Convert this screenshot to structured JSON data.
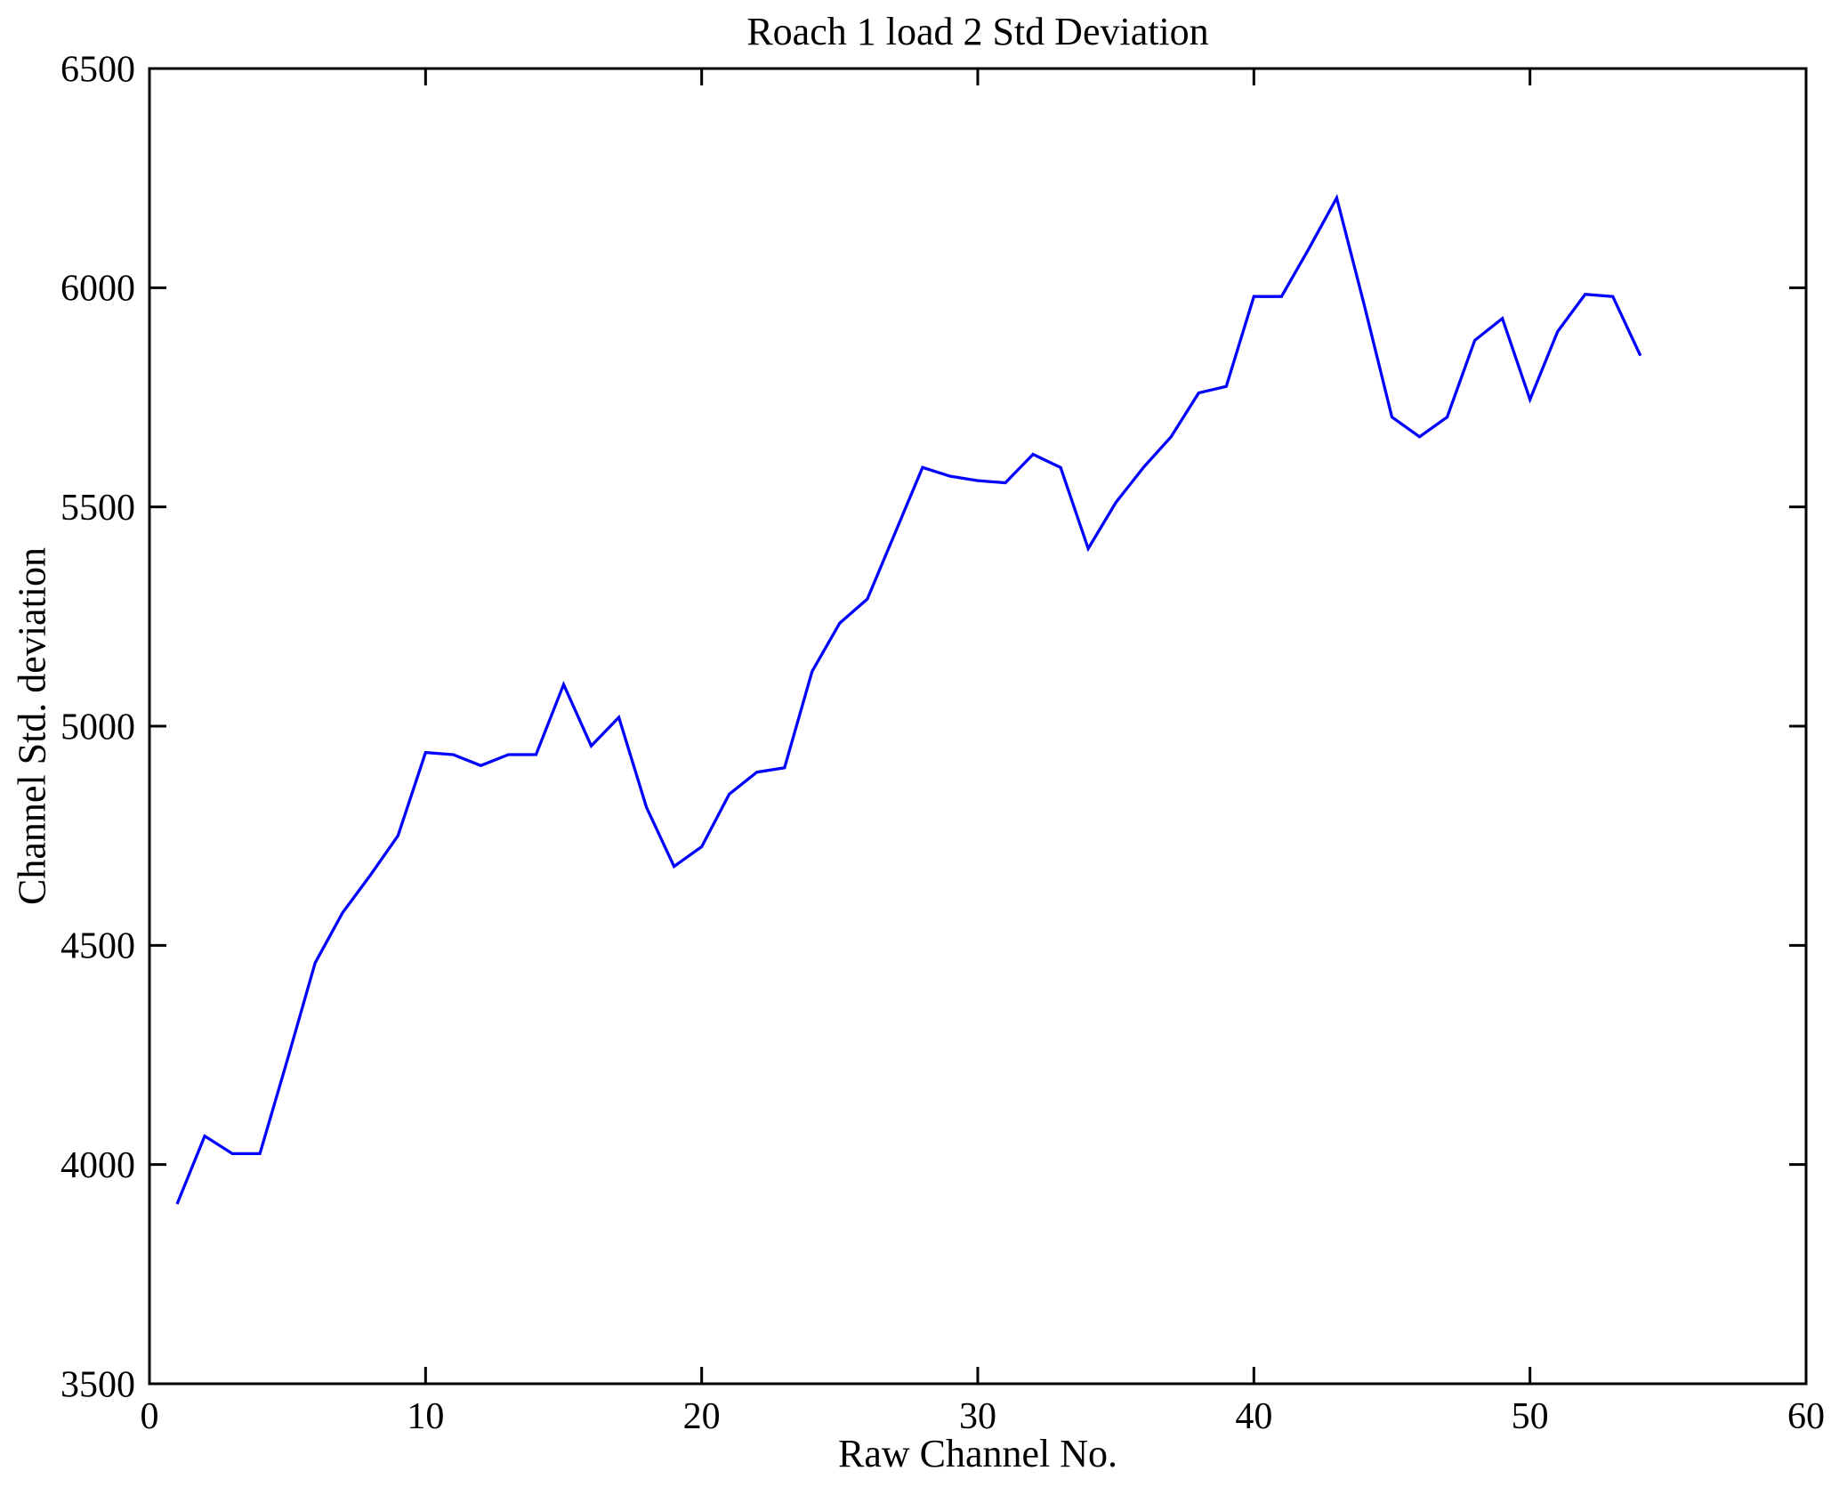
{
  "figure": {
    "background": "#ffffff",
    "axes_color": "#000000"
  },
  "chart_data": {
    "type": "line",
    "title": "Roach 1 load 2 Std Deviation",
    "xlabel": "Raw Channel No.",
    "ylabel": "Channel Std. deviation",
    "xlim": [
      0,
      60
    ],
    "ylim": [
      3500,
      6500
    ],
    "xticks": [
      0,
      10,
      20,
      30,
      40,
      50,
      60
    ],
    "yticks": [
      3500,
      4000,
      4500,
      5000,
      5500,
      6000,
      6500
    ],
    "grid": false,
    "legend": "none",
    "box": true,
    "line_color": "#0000FF",
    "series": [
      {
        "name": "Channel Std. deviation",
        "x": [
          1,
          2,
          3,
          4,
          5,
          6,
          7,
          8,
          9,
          10,
          11,
          12,
          13,
          14,
          15,
          16,
          17,
          18,
          19,
          20,
          21,
          22,
          23,
          24,
          25,
          26,
          27,
          28,
          29,
          30,
          31,
          32,
          33,
          34,
          35,
          36,
          37,
          38,
          39,
          40,
          41,
          42,
          43,
          44,
          45,
          46,
          47,
          48,
          49,
          50,
          51,
          52,
          53,
          54
        ],
        "values": [
          3910,
          4065,
          4025,
          4025,
          4240,
          4460,
          4575,
          4660,
          4750,
          4940,
          4935,
          4910,
          4935,
          4935,
          5095,
          4955,
          5020,
          4815,
          4680,
          4725,
          4845,
          4895,
          4905,
          5125,
          5235,
          5290,
          5440,
          5590,
          5570,
          5560,
          5555,
          5620,
          5590,
          5405,
          5510,
          5590,
          5660,
          5760,
          5775,
          5980,
          5980,
          6090,
          6205,
          5960,
          5705,
          5660,
          5705,
          5880,
          5930,
          5745,
          5900,
          5985,
          5980,
          5845
        ]
      }
    ]
  }
}
